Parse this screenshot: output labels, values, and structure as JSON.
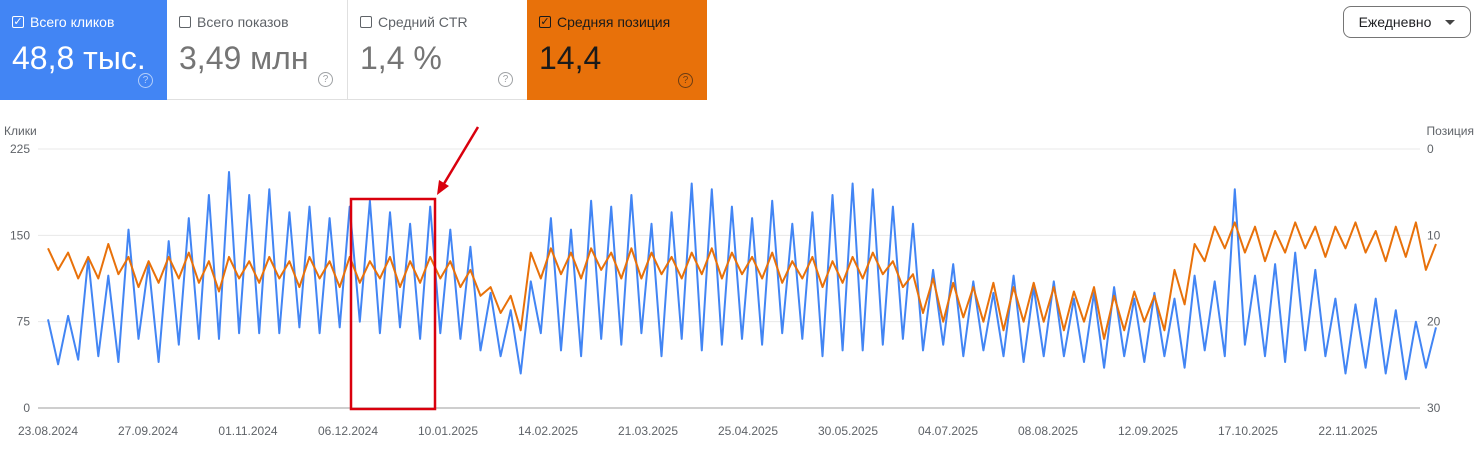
{
  "metrics": [
    {
      "label": "Всего кликов",
      "value": "48,8 тыс.",
      "checked": true,
      "color": "#4285f4"
    },
    {
      "label": "Всего показов",
      "value": "3,49 млн",
      "checked": false
    },
    {
      "label": "Средний CTR",
      "value": "1,4 %",
      "checked": false
    },
    {
      "label": "Средняя позиция",
      "value": "14,4",
      "checked": true,
      "color": "#e8710a"
    }
  ],
  "checkbox_icon": "check-icon",
  "help_icon": "question-circle-icon",
  "dropdown": {
    "value": "Ежедневно",
    "icon": "caret-down-icon"
  },
  "chart_data": {
    "type": "line",
    "left_axis": {
      "label": "Клики",
      "range": [
        0,
        225
      ],
      "ticks": [
        "0",
        "75",
        "150",
        "225"
      ]
    },
    "right_axis": {
      "label": "Позиция",
      "range": [
        0,
        30
      ],
      "inverted": true,
      "ticks": [
        "0",
        "10",
        "20",
        "30"
      ]
    },
    "x_ticks": [
      "23.08.2024",
      "27.09.2024",
      "01.11.2024",
      "06.12.2024",
      "10.01.2025",
      "14.02.2025",
      "21.03.2025",
      "25.04.2025",
      "30.05.2025",
      "04.07.2025",
      "08.08.2025",
      "12.09.2025",
      "17.10.2025",
      "22.11.2025"
    ],
    "grid": true,
    "series": [
      {
        "axis": "left",
        "color": "#4285f4",
        "values": [
          77,
          38,
          80,
          42,
          130,
          45,
          115,
          40,
          155,
          60,
          125,
          40,
          145,
          55,
          165,
          60,
          185,
          60,
          205,
          65,
          185,
          65,
          190,
          65,
          170,
          70,
          175,
          65,
          165,
          70,
          175,
          75,
          180,
          65,
          170,
          70,
          160,
          60,
          175,
          65,
          155,
          60,
          140,
          50,
          100,
          45,
          85,
          30,
          110,
          65,
          165,
          50,
          155,
          45,
          180,
          60,
          175,
          55,
          185,
          65,
          160,
          45,
          170,
          60,
          195,
          50,
          190,
          55,
          175,
          60,
          165,
          55,
          180,
          65,
          160,
          60,
          170,
          45,
          185,
          50,
          195,
          50,
          190,
          55,
          175,
          60,
          160,
          50,
          120,
          55,
          125,
          45,
          110,
          50,
          100,
          45,
          115,
          40,
          105,
          45,
          110,
          45,
          95,
          40,
          100,
          35,
          105,
          45,
          95,
          40,
          100,
          45,
          95,
          35,
          115,
          50,
          110,
          45,
          190,
          55,
          115,
          45,
          125,
          40,
          135,
          50,
          120,
          45,
          95,
          30,
          90,
          35,
          95,
          30,
          85,
          25,
          75,
          35,
          70
        ]
      },
      {
        "axis": "right",
        "color": "#e8710a",
        "values": [
          11.5,
          14,
          12,
          15,
          12.5,
          15,
          11,
          14.5,
          12.5,
          16,
          13,
          15.5,
          12.5,
          15,
          12,
          15.5,
          13,
          16.5,
          12.5,
          15,
          13,
          15.5,
          12.5,
          15,
          13,
          16,
          12.5,
          15,
          13,
          16,
          12.5,
          15.5,
          13,
          15,
          12.5,
          16,
          13,
          15.5,
          12.5,
          15,
          13,
          16,
          14,
          17,
          16,
          19,
          17,
          21,
          12,
          15,
          11.5,
          14.5,
          12,
          15,
          11.5,
          14,
          12,
          15,
          11.5,
          15,
          12,
          14.5,
          12.5,
          15,
          12,
          14.5,
          11.5,
          15,
          12,
          14.5,
          12.5,
          15,
          12,
          15.5,
          13,
          15,
          12.5,
          16,
          13,
          15.5,
          12.5,
          15,
          12,
          14.5,
          13,
          16,
          14.5,
          19,
          15,
          20,
          15.5,
          19.5,
          16,
          20,
          15.5,
          21,
          16,
          20,
          15.5,
          20,
          16,
          21,
          16.5,
          20,
          16,
          22,
          17,
          21,
          16.5,
          20,
          17,
          21,
          14,
          18,
          11,
          13,
          9,
          11.5,
          8.5,
          12,
          9,
          13,
          9.5,
          12,
          8.5,
          11.5,
          9,
          12.5,
          9,
          11.5,
          8.5,
          12,
          9.5,
          13,
          9,
          12.5,
          8.5,
          14,
          11
        ]
      }
    ]
  }
}
